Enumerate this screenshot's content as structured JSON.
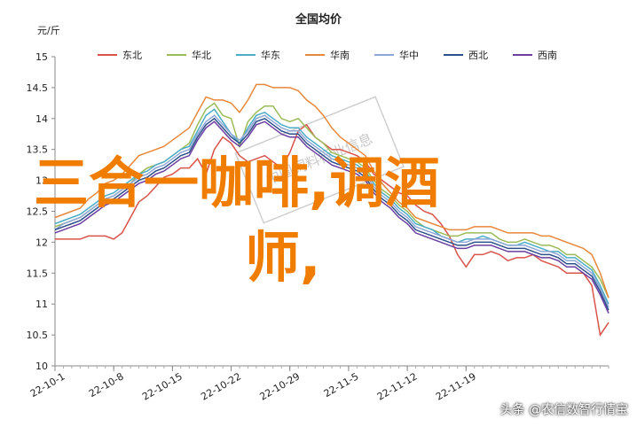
{
  "chart_data": {
    "type": "line",
    "title": "全国均价",
    "unit_label": "元/斤",
    "ylim": [
      10,
      15
    ],
    "yticks": [
      10,
      10.5,
      11,
      11.5,
      12,
      12.5,
      13,
      13.5,
      14,
      14.5,
      15
    ],
    "x_tick_labels": [
      "22-10-1",
      "22-10-8",
      "22-10-15",
      "22-10-22",
      "22-10-29",
      "22-11-5",
      "22-11-12",
      "22-11-19"
    ],
    "legend_position": "top",
    "grid": false,
    "series": [
      {
        "name": "东北",
        "color": "#d9534a",
        "values": [
          12.05,
          12.05,
          12.05,
          12.05,
          12.1,
          12.1,
          12.1,
          12.05,
          12.15,
          12.4,
          12.65,
          12.75,
          12.9,
          13.05,
          13.1,
          13.2,
          13.2,
          13.35,
          13.1,
          13.5,
          13.7,
          13.6,
          13.4,
          13.3,
          13.35,
          13.4,
          13.3,
          13.2,
          13.45,
          13.8,
          13.9,
          13.7,
          13.6,
          13.5,
          13.5,
          13.45,
          13.4,
          13.3,
          13.1,
          13.0,
          12.9,
          12.8,
          12.75,
          12.6,
          12.5,
          12.45,
          12.3,
          12.1,
          11.8,
          11.6,
          11.8,
          11.8,
          11.85,
          11.8,
          11.7,
          11.75,
          11.75,
          11.8,
          11.7,
          11.65,
          11.6,
          11.5,
          11.5,
          11.5,
          11.3,
          10.5,
          10.7
        ]
      },
      {
        "name": "华北",
        "color": "#9bbb59",
        "values": [
          12.25,
          12.3,
          12.35,
          12.4,
          12.5,
          12.6,
          12.7,
          12.75,
          12.85,
          12.95,
          13.1,
          13.2,
          13.25,
          13.3,
          13.4,
          13.5,
          13.6,
          13.9,
          14.15,
          14.25,
          14.05,
          14.0,
          13.55,
          13.95,
          14.1,
          14.2,
          14.2,
          14.0,
          13.95,
          14.0,
          13.85,
          13.7,
          13.6,
          13.45,
          13.4,
          13.35,
          13.3,
          13.2,
          13.0,
          12.85,
          12.75,
          12.6,
          12.5,
          12.35,
          12.25,
          12.2,
          12.15,
          12.1,
          12.1,
          12.15,
          12.15,
          12.15,
          12.15,
          12.05,
          12.0,
          12.0,
          12.05,
          12.0,
          11.95,
          11.95,
          11.9,
          11.8,
          11.8,
          11.7,
          11.6,
          11.4,
          11.1
        ]
      },
      {
        "name": "华东",
        "color": "#4bacc6",
        "values": [
          12.3,
          12.35,
          12.4,
          12.45,
          12.55,
          12.65,
          12.75,
          12.8,
          12.9,
          13.0,
          13.1,
          13.15,
          13.25,
          13.3,
          13.4,
          13.5,
          13.55,
          13.8,
          14.05,
          14.15,
          13.95,
          13.75,
          13.6,
          13.85,
          14.05,
          14.1,
          14.0,
          13.9,
          13.85,
          13.85,
          13.7,
          13.6,
          13.5,
          13.4,
          13.35,
          13.3,
          13.25,
          13.15,
          12.95,
          12.8,
          12.7,
          12.55,
          12.45,
          12.3,
          12.25,
          12.2,
          12.1,
          12.05,
          12.0,
          12.05,
          12.05,
          12.1,
          12.05,
          12.0,
          11.95,
          11.95,
          12.0,
          11.95,
          11.9,
          11.85,
          11.85,
          11.75,
          11.75,
          11.65,
          11.55,
          11.3,
          11.0
        ]
      },
      {
        "name": "华南",
        "color": "#e8883a",
        "values": [
          12.4,
          12.45,
          12.5,
          12.55,
          12.7,
          12.8,
          12.95,
          13.0,
          13.1,
          13.25,
          13.4,
          13.45,
          13.5,
          13.55,
          13.65,
          13.75,
          13.85,
          14.1,
          14.35,
          14.3,
          14.3,
          14.25,
          14.1,
          14.3,
          14.55,
          14.55,
          14.5,
          14.5,
          14.5,
          14.45,
          14.3,
          14.2,
          14.05,
          13.85,
          13.7,
          13.6,
          13.5,
          13.4,
          13.15,
          12.95,
          12.8,
          12.65,
          12.55,
          12.4,
          12.35,
          12.3,
          12.25,
          12.2,
          12.2,
          12.2,
          12.25,
          12.25,
          12.25,
          12.2,
          12.15,
          12.15,
          12.15,
          12.15,
          12.1,
          12.1,
          12.05,
          12.0,
          11.95,
          11.9,
          11.8,
          11.5,
          11.1
        ]
      },
      {
        "name": "华中",
        "color": "#8ea6d6",
        "values": [
          12.2,
          12.3,
          12.35,
          12.4,
          12.5,
          12.6,
          12.7,
          12.75,
          12.85,
          12.95,
          13.05,
          13.1,
          13.2,
          13.25,
          13.35,
          13.45,
          13.5,
          13.75,
          13.95,
          14.05,
          13.9,
          13.75,
          13.65,
          13.8,
          14.0,
          14.05,
          13.95,
          13.85,
          13.8,
          13.8,
          13.65,
          13.55,
          13.45,
          13.35,
          13.3,
          13.25,
          13.2,
          13.1,
          12.9,
          12.75,
          12.65,
          12.5,
          12.4,
          12.25,
          12.2,
          12.15,
          12.1,
          12.05,
          12.0,
          12.0,
          12.05,
          12.05,
          12.05,
          12.0,
          11.95,
          11.95,
          11.95,
          11.9,
          11.85,
          11.85,
          11.8,
          11.7,
          11.7,
          11.6,
          11.5,
          11.25,
          10.95
        ]
      },
      {
        "name": "西北",
        "color": "#2d4f8a",
        "values": [
          12.2,
          12.25,
          12.3,
          12.35,
          12.45,
          12.55,
          12.65,
          12.7,
          12.8,
          12.9,
          13.0,
          13.05,
          13.15,
          13.2,
          13.3,
          13.4,
          13.45,
          13.7,
          13.9,
          14.0,
          13.85,
          13.7,
          13.6,
          13.75,
          13.95,
          14.0,
          13.9,
          13.8,
          13.75,
          13.75,
          13.6,
          13.5,
          13.4,
          13.3,
          13.25,
          13.2,
          13.15,
          13.05,
          12.85,
          12.7,
          12.6,
          12.45,
          12.35,
          12.2,
          12.15,
          12.1,
          12.05,
          12.0,
          11.95,
          11.95,
          12.0,
          12.0,
          12.0,
          11.95,
          11.9,
          11.9,
          11.9,
          11.85,
          11.8,
          11.8,
          11.75,
          11.65,
          11.65,
          11.55,
          11.45,
          11.2,
          10.9
        ]
      },
      {
        "name": "西南",
        "color": "#6b3fa0",
        "values": [
          12.15,
          12.2,
          12.25,
          12.3,
          12.4,
          12.5,
          12.6,
          12.65,
          12.75,
          12.85,
          12.95,
          13.0,
          13.1,
          13.15,
          13.25,
          13.35,
          13.4,
          13.65,
          13.85,
          13.95,
          13.8,
          13.65,
          13.55,
          13.7,
          13.9,
          13.95,
          13.85,
          13.75,
          13.7,
          13.7,
          13.55,
          13.45,
          13.35,
          13.25,
          13.2,
          13.15,
          13.1,
          13.0,
          12.8,
          12.65,
          12.55,
          12.4,
          12.3,
          12.15,
          12.1,
          12.05,
          12.0,
          11.95,
          11.9,
          11.9,
          11.95,
          11.95,
          11.95,
          11.9,
          11.85,
          11.85,
          11.85,
          11.8,
          11.75,
          11.75,
          11.7,
          11.6,
          11.6,
          11.5,
          11.4,
          11.15,
          10.85
        ]
      }
    ]
  },
  "overlay_text": "三合一咖啡,调酒师,",
  "watermark_text": "中国饲料行业信息",
  "footer_text": "头条 @农信数智行情宝"
}
